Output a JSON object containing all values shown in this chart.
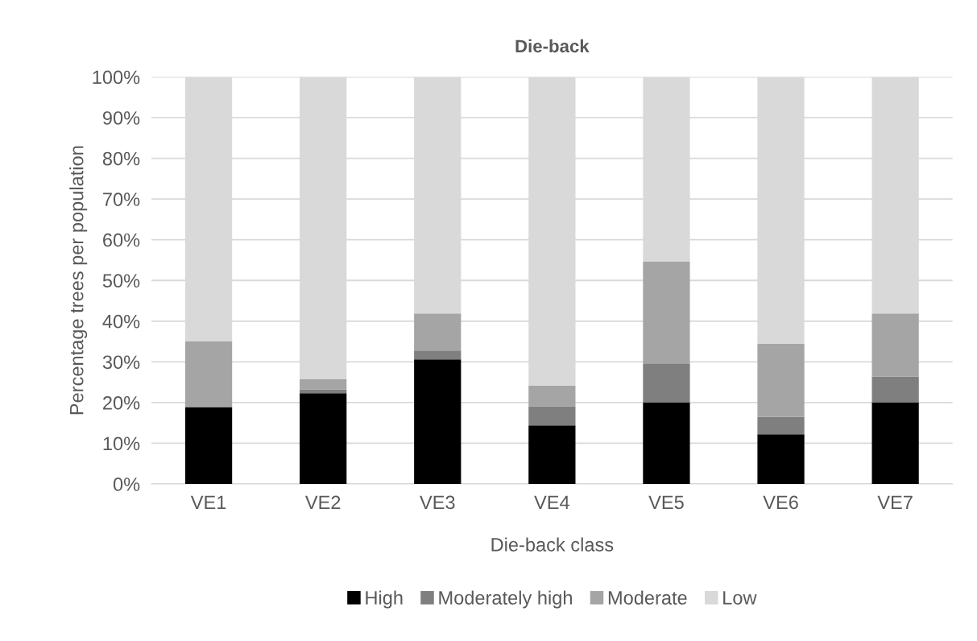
{
  "chart_data": {
    "type": "bar",
    "title": "Die-back",
    "xlabel": "Die-back class",
    "ylabel": "Percentage trees per population",
    "categories": [
      "VE1",
      "VE2",
      "VE3",
      "VE4",
      "VE5",
      "VE6",
      "VE7"
    ],
    "stacked": true,
    "series": [
      {
        "name": "High",
        "color": "#000000",
        "values": [
          18.9,
          22.3,
          30.6,
          14.4,
          20.0,
          12.2,
          20.0
        ]
      },
      {
        "name": "Moderately high",
        "color": "#7f7f7f",
        "values": [
          0,
          0.9,
          2.2,
          4.7,
          9.6,
          4.3,
          6.4
        ]
      },
      {
        "name": "Moderate",
        "color": "#a5a5a5",
        "values": [
          16.1,
          2.6,
          9.1,
          5.1,
          25.1,
          17.9,
          15.5
        ]
      },
      {
        "name": "Low",
        "color": "#d9d9d9",
        "values": [
          65.0,
          74.2,
          58.1,
          75.8,
          45.3,
          65.6,
          58.1
        ]
      }
    ],
    "ylim": [
      0,
      100
    ],
    "yticks": [
      {
        "value": 0,
        "label": "0%"
      },
      {
        "value": 10,
        "label": "10%"
      },
      {
        "value": 20,
        "label": "20%"
      },
      {
        "value": 30,
        "label": "30%"
      },
      {
        "value": 40,
        "label": "40%"
      },
      {
        "value": 50,
        "label": "50%"
      },
      {
        "value": 60,
        "label": "60%"
      },
      {
        "value": 70,
        "label": "70%"
      },
      {
        "value": 80,
        "label": "80%"
      },
      {
        "value": 90,
        "label": "90%"
      },
      {
        "value": 100,
        "label": "100%"
      }
    ],
    "grid": "y",
    "legend": "bottom"
  }
}
